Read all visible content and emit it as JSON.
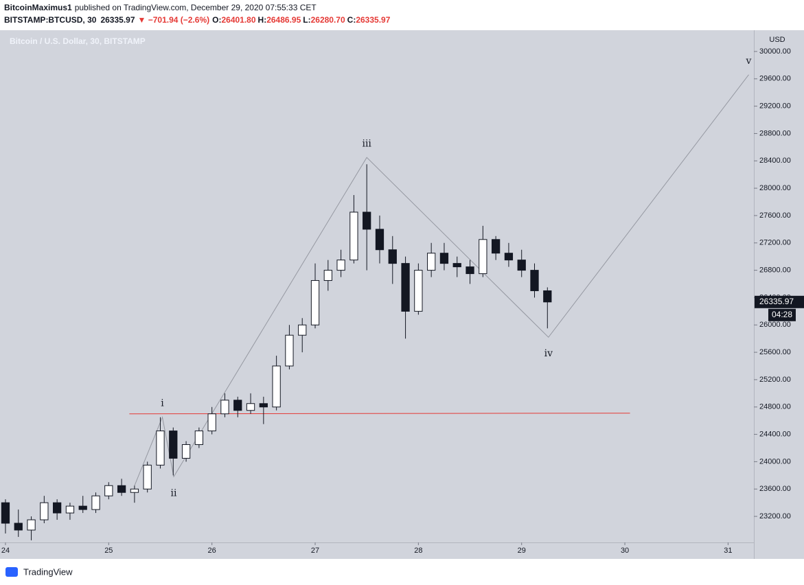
{
  "header": {
    "author": "BitcoinMaximus1",
    "published": "published on TradingView.com, December 29, 2020 07:55:33 CET",
    "symbol": "BITSTAMP:BTCUSD, 30",
    "price": "26335.97",
    "change": "▼ −701.94 (−2.6%)",
    "ohlc": [
      {
        "label": "O:",
        "value": "26401.80"
      },
      {
        "label": "H:",
        "value": "26486.95"
      },
      {
        "label": "L:",
        "value": "26280.70"
      },
      {
        "label": "C:",
        "value": "26335.97"
      }
    ]
  },
  "chart_data": {
    "type": "candlestick",
    "title": "Bitcoin / U.S. Dollar, 30, BITSTAMP",
    "y_unit": "USD",
    "x": [
      24,
      24.125,
      24.25,
      24.375,
      24.5,
      24.625,
      24.75,
      24.875,
      25,
      25.125,
      25.25,
      25.375,
      25.5,
      25.625,
      25.75,
      25.875,
      26,
      26.125,
      26.25,
      26.375,
      26.5,
      26.625,
      26.75,
      26.875,
      27,
      27.125,
      27.25,
      27.375,
      27.5,
      27.625,
      27.75,
      27.875,
      28,
      28.125,
      28.25,
      28.375,
      28.5,
      28.625,
      28.75,
      28.875,
      29,
      29.125,
      29.25
    ],
    "open": [
      23400,
      23100,
      23000,
      23150,
      23400,
      23250,
      23350,
      23300,
      23500,
      23650,
      23550,
      23600,
      23950,
      24450,
      24050,
      24250,
      24450,
      24700,
      24900,
      24750,
      24850,
      24800,
      25400,
      25850,
      26000,
      26650,
      26800,
      26950,
      27650,
      27400,
      27100,
      26900,
      26200,
      26800,
      27050,
      26900,
      26850,
      26750,
      27250,
      27050,
      26950,
      26800,
      26500
    ],
    "high": [
      23450,
      23300,
      23200,
      23500,
      23450,
      23400,
      23500,
      23550,
      23700,
      23750,
      23650,
      24000,
      24650,
      24500,
      24300,
      24500,
      24800,
      25000,
      24950,
      25000,
      24950,
      25550,
      26000,
      26100,
      26900,
      26950,
      27100,
      27900,
      28350,
      27600,
      27300,
      27000,
      26900,
      27200,
      27200,
      27000,
      26950,
      27450,
      27300,
      27200,
      27100,
      26900,
      26550
    ],
    "low": [
      22950,
      22900,
      22850,
      23100,
      23150,
      23150,
      23250,
      23250,
      23450,
      23500,
      23400,
      23550,
      23900,
      23800,
      24000,
      24200,
      24400,
      24650,
      24650,
      24700,
      24550,
      24750,
      25350,
      25600,
      25950,
      26500,
      26700,
      26900,
      26800,
      26900,
      26600,
      25800,
      26150,
      26700,
      26800,
      26700,
      26600,
      26700,
      26950,
      26850,
      26700,
      26400,
      25950
    ],
    "close": [
      23100,
      23000,
      23150,
      23400,
      23250,
      23350,
      23300,
      23500,
      23650,
      23550,
      23600,
      23950,
      24450,
      24050,
      24250,
      24450,
      24700,
      24900,
      24750,
      24850,
      24800,
      25400,
      25850,
      26000,
      26650,
      26800,
      26950,
      27650,
      27400,
      27100,
      26900,
      26200,
      26800,
      27050,
      26900,
      26850,
      26750,
      27250,
      27050,
      26950,
      26800,
      26500,
      26335.97
    ],
    "color": "#131722",
    "last_price": 26335.97,
    "countdown": "04:28",
    "support_line": {
      "x": [
        25.2,
        30.05
      ],
      "y": [
        24700,
        24710
      ],
      "color": "#e53935"
    },
    "wave": {
      "color": "#9598a1",
      "points": [
        {
          "x": 25.25,
          "y": 23650
        },
        {
          "x": 25.52,
          "y": 24650,
          "label": "i"
        },
        {
          "x": 25.63,
          "y": 23780,
          "label": "ii"
        },
        {
          "x": 27.5,
          "y": 28450,
          "label": "iii"
        },
        {
          "x": 29.26,
          "y": 25820,
          "label": "iv"
        },
        {
          "x": 31.2,
          "y": 29660,
          "label": "v"
        }
      ]
    },
    "xlim": [
      23.947,
      31.25
    ],
    "ylim": [
      22819,
      30311
    ],
    "xticks": [
      24,
      25,
      26,
      27,
      28,
      29,
      30,
      31
    ],
    "yticks": [
      {
        "value": 23200,
        "label": "23200.00"
      },
      {
        "value": 23600,
        "label": "23600.00"
      },
      {
        "value": 24000,
        "label": "24000.00"
      },
      {
        "value": 24400,
        "label": "24400.00"
      },
      {
        "value": 24800,
        "label": "24800.00"
      },
      {
        "value": 25200,
        "label": "25200.00"
      },
      {
        "value": 25600,
        "label": "25600.00"
      },
      {
        "value": 26000,
        "label": "26000.00"
      },
      {
        "value": 26400,
        "label": "26400.00"
      },
      {
        "value": 26800,
        "label": "26800.00"
      },
      {
        "value": 27200,
        "label": "27200.00"
      },
      {
        "value": 27600,
        "label": "27600.00"
      },
      {
        "value": 28000,
        "label": "28000.00"
      },
      {
        "value": 28400,
        "label": "28400.00"
      },
      {
        "value": 28800,
        "label": "28800.00"
      },
      {
        "value": 29200,
        "label": "29200.00"
      },
      {
        "value": 29600,
        "label": "29600.00"
      },
      {
        "value": 30000,
        "label": "30000.00"
      }
    ]
  },
  "footer": {
    "brand": "TradingView"
  }
}
